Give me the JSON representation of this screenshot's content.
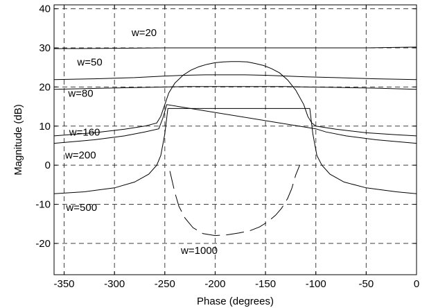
{
  "chart_data": {
    "type": "line",
    "title": "",
    "xlabel": "Phase (degrees)",
    "ylabel": "Magnitude (dB)",
    "xlim": [
      -360,
      0
    ],
    "ylim": [
      -28,
      41
    ],
    "xticks": [
      -350,
      -300,
      -250,
      -200,
      -150,
      -100,
      -50,
      0
    ],
    "yticks": [
      40,
      30,
      20,
      10,
      0,
      -10,
      -20
    ],
    "xtick_labels": [
      "-350",
      "-300",
      "-250",
      "-200",
      "-150",
      "-100",
      "-50",
      "0"
    ],
    "ytick_labels": [
      "40",
      "30",
      "20",
      "10",
      "0",
      "-10",
      "-20"
    ],
    "grid": true,
    "series": [
      {
        "name": "w=20",
        "x": [
          -360,
          -300,
          -250,
          -200,
          -150,
          -100,
          -50,
          0
        ],
        "y": [
          29.8,
          29.9,
          30.0,
          30.0,
          30.0,
          30.0,
          30.0,
          30.2
        ]
      },
      {
        "name": "w=50",
        "x": [
          -360,
          -320,
          -280,
          -250,
          -230,
          -210,
          -190,
          -170,
          -150,
          -130,
          -110,
          -80,
          -40,
          0
        ],
        "y": [
          21.9,
          22.1,
          22.4,
          22.8,
          23.0,
          23.1,
          23.1,
          23.1,
          23.0,
          22.8,
          22.6,
          22.4,
          22.1,
          21.9
        ]
      },
      {
        "name": "w=80",
        "x": [
          -360,
          -310,
          -270,
          -250,
          -230,
          -210,
          -190,
          -170,
          -150,
          -130,
          -110,
          -80,
          -40,
          0
        ],
        "y": [
          19.4,
          19.7,
          19.9,
          20.0,
          20.1,
          20.1,
          20.1,
          20.1,
          20.1,
          20.1,
          20.0,
          19.9,
          19.7,
          19.4
        ]
      },
      {
        "name": "w=160",
        "x": [
          -360,
          -320,
          -290,
          -270,
          -258,
          -254,
          -250,
          -246,
          -240,
          -232,
          -224,
          -216,
          -208,
          -200,
          -192,
          -184,
          -176,
          -168,
          -160,
          -152,
          -144,
          -136,
          -128,
          -120,
          -112,
          -108,
          -104,
          -100,
          -80,
          -50,
          -20,
          0
        ],
        "y": [
          7.5,
          8.3,
          9.2,
          10.0,
          10.8,
          12.5,
          15.5,
          18.5,
          21.0,
          23.0,
          24.3,
          25.2,
          25.8,
          26.2,
          26.4,
          26.5,
          26.5,
          26.4,
          26.0,
          25.5,
          24.7,
          23.6,
          21.8,
          19.2,
          15.5,
          12.5,
          10.8,
          10.0,
          9.2,
          8.3,
          7.8,
          7.5
        ]
      },
      {
        "name": "w=200",
        "x": [
          -360,
          -320,
          -290,
          -270,
          -256,
          -252,
          -248,
          -100,
          -90,
          -70,
          -40,
          -10,
          0
        ],
        "y": [
          5.6,
          6.5,
          7.5,
          8.5,
          9.3,
          12.0,
          15.5,
          9.3,
          8.5,
          7.5,
          6.5,
          5.8,
          5.6
        ]
      },
      {
        "name": "w=500",
        "x": [
          -360,
          -330,
          -300,
          -280,
          -266,
          -258,
          -254,
          -250,
          -247,
          -106,
          -103,
          -99,
          -94,
          -86,
          -72,
          -50,
          -20,
          0
        ],
        "y": [
          -7.3,
          -6.8,
          -5.8,
          -4.3,
          -2.3,
          0.0,
          2.5,
          8.0,
          14.5,
          14.5,
          8.0,
          2.5,
          0.0,
          -2.3,
          -4.3,
          -5.8,
          -6.8,
          -7.3
        ]
      },
      {
        "name": "w=1000",
        "x": [
          -245,
          -240,
          -236,
          -230,
          -222,
          -212,
          -200,
          -188,
          -176,
          -166,
          -156,
          -148,
          -140,
          -134,
          -128,
          -124,
          -120,
          -116
        ],
        "y": [
          -1.5,
          -7.0,
          -10.5,
          -13.5,
          -16.0,
          -17.5,
          -18.0,
          -17.8,
          -17.3,
          -16.8,
          -15.8,
          -14.5,
          -12.8,
          -11.0,
          -8.5,
          -6.0,
          -2.5,
          0.0
        ]
      }
    ]
  }
}
